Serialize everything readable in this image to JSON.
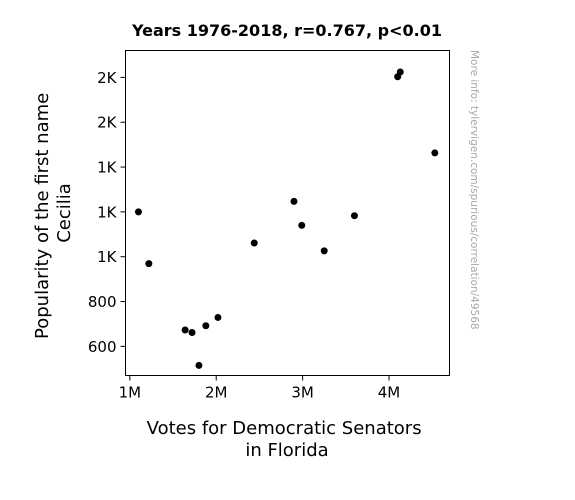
{
  "chart_data": {
    "type": "scatter",
    "title": "Years 1976-2018, r=0.767, p<0.01",
    "xlabel_lines": [
      "Votes for Democratic Senators",
      "in Florida"
    ],
    "ylabel_lines": [
      "Popularity of the first name",
      "Cecilia"
    ],
    "watermark": "More info: tylervigen.com/spurious/correlation/49568",
    "xlim": [
      0.95,
      4.7
    ],
    "ylim": [
      470,
      1920
    ],
    "x_ticks": [
      {
        "value": 1,
        "label": "1M"
      },
      {
        "value": 2,
        "label": "2M"
      },
      {
        "value": 3,
        "label": "3M"
      },
      {
        "value": 4,
        "label": "4M"
      }
    ],
    "y_ticks": [
      {
        "value": 600,
        "label": "600"
      },
      {
        "value": 800,
        "label": "800"
      },
      {
        "value": 1000,
        "label": "1K"
      },
      {
        "value": 1200,
        "label": "1K"
      },
      {
        "value": 1400,
        "label": "1K"
      },
      {
        "value": 1600,
        "label": "2K"
      },
      {
        "value": 1800,
        "label": "2K"
      }
    ],
    "points": [
      {
        "x": 1.1,
        "y": 1200
      },
      {
        "x": 1.22,
        "y": 969
      },
      {
        "x": 1.64,
        "y": 673
      },
      {
        "x": 1.72,
        "y": 662
      },
      {
        "x": 1.8,
        "y": 515
      },
      {
        "x": 1.88,
        "y": 692
      },
      {
        "x": 2.02,
        "y": 729
      },
      {
        "x": 2.44,
        "y": 1061
      },
      {
        "x": 2.9,
        "y": 1247
      },
      {
        "x": 2.99,
        "y": 1140
      },
      {
        "x": 3.25,
        "y": 1026
      },
      {
        "x": 3.6,
        "y": 1183
      },
      {
        "x": 4.1,
        "y": 1803
      },
      {
        "x": 4.13,
        "y": 1824
      },
      {
        "x": 4.53,
        "y": 1463
      }
    ]
  }
}
